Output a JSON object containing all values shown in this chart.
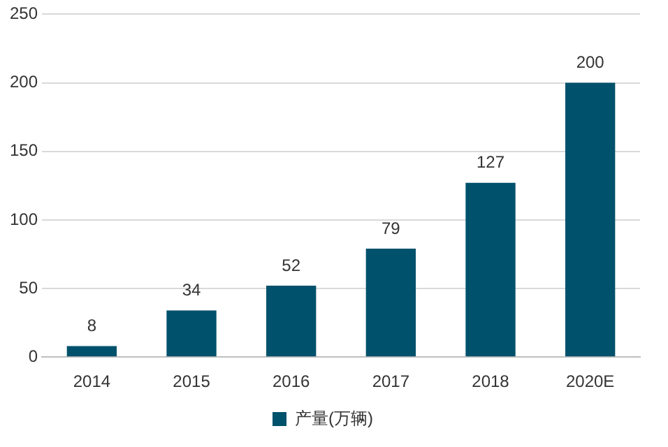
{
  "chart_data": {
    "type": "bar",
    "categories": [
      "2014",
      "2015",
      "2016",
      "2017",
      "2018",
      "2020E"
    ],
    "series": [
      {
        "name": "产量(万辆)",
        "color": "#00516b",
        "values": [
          8,
          34,
          52,
          79,
          127,
          200
        ]
      }
    ],
    "ylim": [
      0,
      250
    ],
    "yticks": [
      0,
      50,
      100,
      150,
      200,
      250
    ],
    "grid": "y",
    "legend": "bottom",
    "data_labels": true
  }
}
